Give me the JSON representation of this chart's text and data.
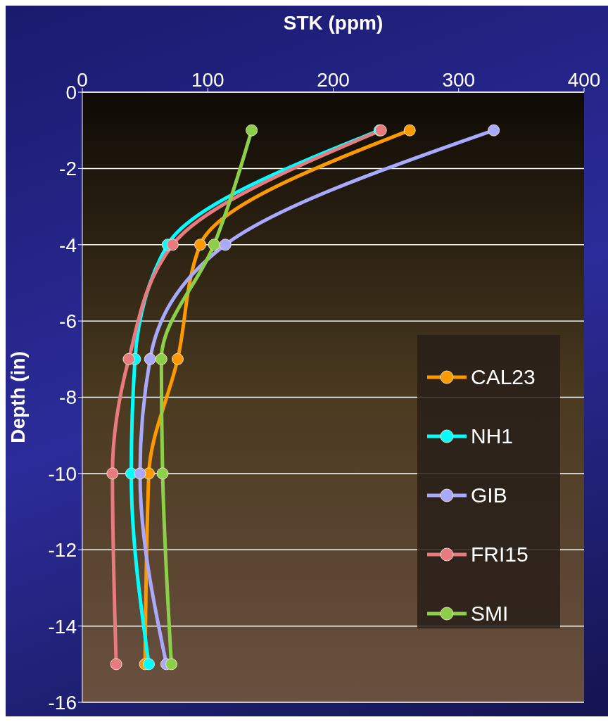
{
  "chart_data": {
    "type": "line",
    "xlabel": "STK (ppm)",
    "ylabel": "Depth (in)",
    "orientation": "horizontal",
    "x": [
      -1,
      -4,
      -7,
      -10,
      -15
    ],
    "series": [
      {
        "name": "CAL23",
        "color": "#ff9900",
        "values": [
          261,
          94,
          76,
          53,
          50
        ]
      },
      {
        "name": "NH1",
        "color": "#00ffff",
        "values": [
          237,
          68,
          42,
          39,
          53
        ]
      },
      {
        "name": "GIB",
        "color": "#a9a9ff",
        "values": [
          328,
          114,
          54,
          46,
          67
        ]
      },
      {
        "name": "FRI15",
        "color": "#e87a80",
        "values": [
          238,
          72,
          37,
          24,
          27
        ]
      },
      {
        "name": "SMI",
        "color": "#8cd04a",
        "values": [
          135,
          105,
          63,
          64,
          71
        ]
      }
    ],
    "xlim": [
      0,
      400
    ],
    "xticks": [
      0,
      100,
      200,
      300,
      400
    ],
    "ylim": [
      -16,
      0
    ],
    "yticks": [
      0,
      -2,
      -4,
      -6,
      -8,
      -10,
      -12,
      -14,
      -16
    ],
    "grid": "y",
    "legend": "right",
    "marker": "circle",
    "line_style": "solid"
  }
}
